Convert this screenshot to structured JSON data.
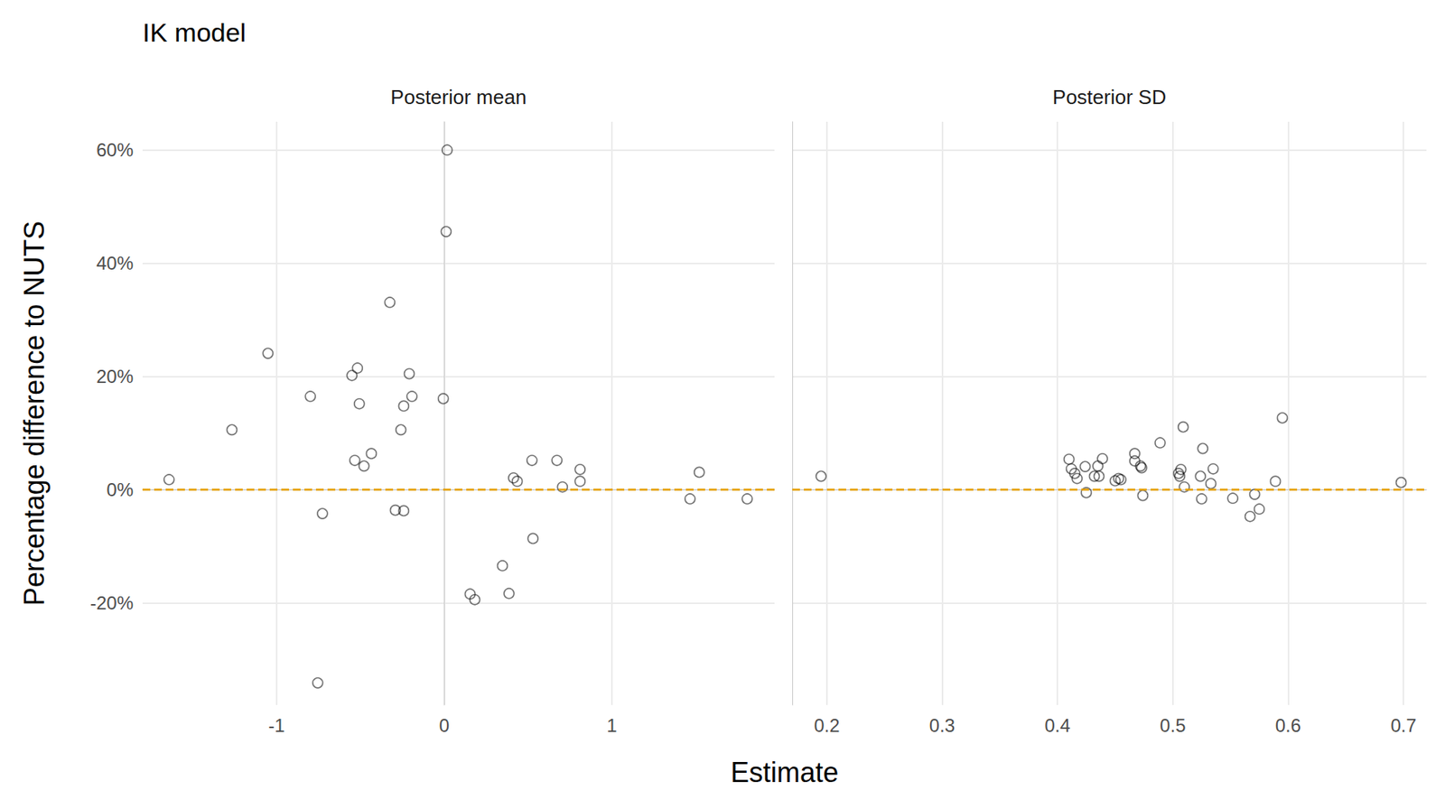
{
  "chart_data": {
    "type": "scatter",
    "title": "IK model",
    "x_label": "Estimate",
    "y_label": "Percentage difference to NUTS",
    "ylim": [
      -38,
      65
    ],
    "yticks": [
      {
        "value": -20,
        "label": "-20%"
      },
      {
        "value": 0,
        "label": "0%"
      },
      {
        "value": 20,
        "label": "20%"
      },
      {
        "value": 40,
        "label": "40%"
      },
      {
        "value": 60,
        "label": "60%"
      }
    ],
    "grid": true,
    "color": "#000000",
    "marker": "circle-open",
    "reference_line": {
      "y": 0,
      "color": "#e69f00",
      "line_style": "dashed"
    },
    "panels": [
      {
        "title": "Posterior mean",
        "xlim": [
          -1.8,
          1.97
        ],
        "xticks": [
          -1,
          0,
          1
        ],
        "x": [
          -1.642,
          -1.267,
          -1.052,
          -0.799,
          -0.727,
          -0.755,
          -0.551,
          -0.518,
          -0.507,
          -0.534,
          -0.479,
          -0.435,
          -0.325,
          -0.292,
          -0.242,
          -0.259,
          -0.242,
          -0.209,
          -0.193,
          0.017,
          0.011,
          -0.006,
          0.154,
          0.182,
          0.347,
          0.386,
          0.413,
          0.435,
          0.523,
          0.529,
          0.672,
          0.705,
          0.81,
          0.81,
          1.466,
          1.521,
          1.807
        ],
        "values": [
          1.8,
          10.6,
          24.1,
          16.5,
          -4.2,
          -34.1,
          20.2,
          21.5,
          15.2,
          5.2,
          4.2,
          6.4,
          33.1,
          -3.6,
          -3.7,
          10.6,
          14.8,
          20.5,
          16.5,
          60.0,
          45.6,
          16.1,
          -18.4,
          -19.4,
          -13.4,
          -18.3,
          2.1,
          1.5,
          5.2,
          -8.6,
          5.2,
          0.5,
          3.6,
          1.5,
          -1.6,
          3.1,
          -1.6
        ]
      },
      {
        "title": "Posterior SD",
        "xlim": [
          0.17,
          0.72
        ],
        "xticks": [
          0.2,
          0.3,
          0.4,
          0.5,
          0.6,
          0.7
        ],
        "x": [
          0.195,
          0.41,
          0.412,
          0.415,
          0.417,
          0.424,
          0.425,
          0.432,
          0.435,
          0.436,
          0.439,
          0.45,
          0.453,
          0.455,
          0.467,
          0.467,
          0.472,
          0.473,
          0.474,
          0.489,
          0.505,
          0.506,
          0.507,
          0.509,
          0.51,
          0.524,
          0.525,
          0.526,
          0.533,
          0.535,
          0.552,
          0.567,
          0.571,
          0.575,
          0.589,
          0.595,
          0.698
        ],
        "values": [
          2.4,
          5.4,
          3.7,
          2.9,
          2.0,
          4.1,
          -0.5,
          2.4,
          4.2,
          2.4,
          5.5,
          1.6,
          2.0,
          1.8,
          6.4,
          5.1,
          4.2,
          3.9,
          -1.0,
          8.3,
          2.9,
          2.4,
          3.6,
          11.1,
          0.5,
          2.4,
          -1.6,
          7.3,
          1.1,
          3.7,
          -1.5,
          -4.7,
          -0.8,
          -3.4,
          1.5,
          12.7,
          1.3
        ]
      }
    ]
  }
}
